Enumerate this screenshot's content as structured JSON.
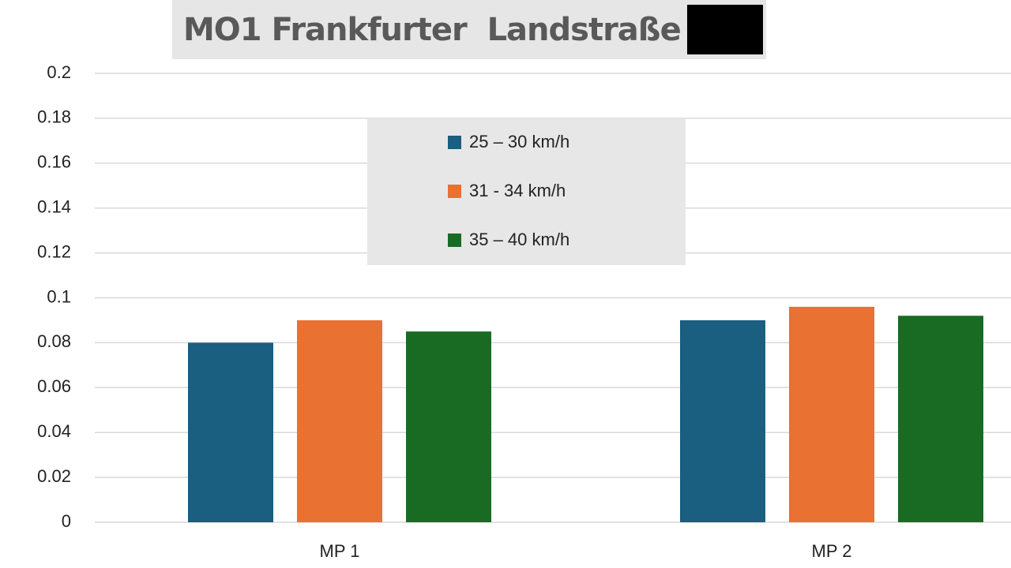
{
  "chart_data": {
    "type": "bar",
    "title": "MO1 Frankfurter  Landstraße",
    "categories": [
      "MP 1",
      "MP 2"
    ],
    "series": [
      {
        "name": "25 – 30 km/h",
        "color": "#1a5e80",
        "values": [
          0.08,
          0.09
        ]
      },
      {
        "name": "31 - 34 km/h",
        "color": "#e97132",
        "values": [
          0.09,
          0.096
        ]
      },
      {
        "name": "35 – 40 km/h",
        "color": "#196b24",
        "values": [
          0.085,
          0.092
        ]
      }
    ],
    "ylim": [
      0,
      0.2
    ],
    "yticks": [
      0,
      0.02,
      0.04,
      0.06,
      0.08,
      0.1,
      0.12,
      0.14,
      0.16,
      0.18,
      0.2
    ],
    "grid": true,
    "legend": "top"
  }
}
